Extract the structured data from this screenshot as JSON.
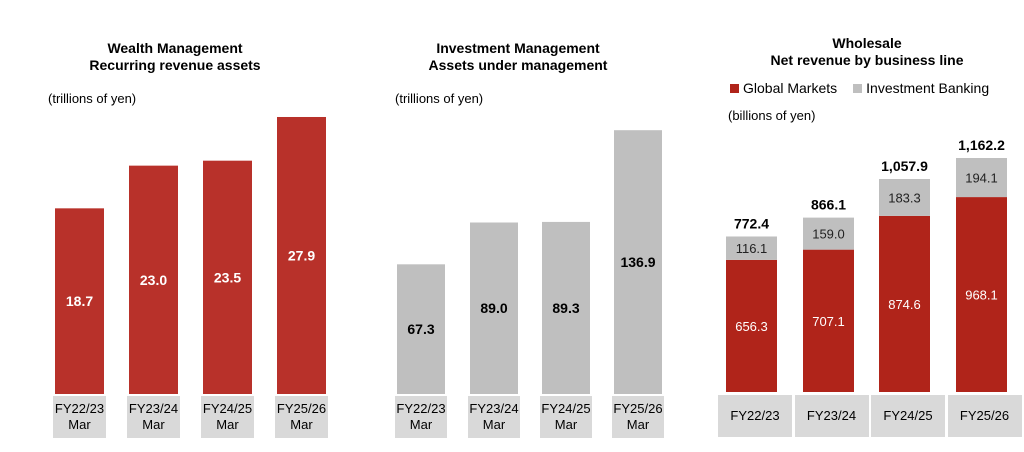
{
  "colors": {
    "red": "#b8312a",
    "red_dark": "#b0241a",
    "gray": "#bfbfbf",
    "cat_bg": "#d9d9d9"
  },
  "chart_data": [
    {
      "type": "bar",
      "title": "Wealth Management",
      "subtitle": "Recurring revenue assets",
      "ylabel": "(trillions of yen)",
      "categories": [
        "FY22/23 Mar",
        "FY23/24 Mar",
        "FY24/25 Mar",
        "FY25/26 Mar"
      ],
      "category_lines": [
        [
          "FY22/23",
          "Mar"
        ],
        [
          "FY23/24",
          "Mar"
        ],
        [
          "FY24/25",
          "Mar"
        ],
        [
          "FY25/26",
          "Mar"
        ]
      ],
      "values": [
        18.7,
        23.0,
        23.5,
        27.9
      ],
      "labels": [
        "18.7",
        "23.0",
        "23.5",
        "27.9"
      ],
      "ylim": [
        0,
        28
      ],
      "color": "#b8312a",
      "grid": false
    },
    {
      "type": "bar",
      "title": "Investment Management",
      "subtitle": "Assets under management",
      "ylabel": "(trillions of yen)",
      "categories": [
        "FY22/23 Mar",
        "FY23/24 Mar",
        "FY24/25 Mar",
        "FY25/26 Mar"
      ],
      "category_lines": [
        [
          "FY22/23",
          "Mar"
        ],
        [
          "FY23/24",
          "Mar"
        ],
        [
          "FY24/25",
          "Mar"
        ],
        [
          "FY25/26",
          "Mar"
        ]
      ],
      "values": [
        67.3,
        89.0,
        89.3,
        136.9
      ],
      "labels": [
        "67.3",
        "89.0",
        "89.3",
        "136.9"
      ],
      "ylim": [
        0,
        137
      ],
      "color": "#bfbfbf",
      "grid": false
    },
    {
      "type": "bar",
      "stacked": true,
      "title": "Wholesale",
      "subtitle": "Net revenue by business line",
      "ylabel": "(billions of yen)",
      "legend_position": "top",
      "categories": [
        "FY22/23",
        "FY23/24",
        "FY24/25",
        "FY25/26"
      ],
      "series": [
        {
          "name": "Global Markets",
          "values": [
            656.3,
            707.1,
            874.6,
            968.1
          ],
          "labels": [
            "656.3",
            "707.1",
            "874.6",
            "968.1"
          ],
          "color": "#b0241a"
        },
        {
          "name": "Investment Banking",
          "values": [
            116.1,
            159.0,
            183.3,
            194.1
          ],
          "labels": [
            "116.1",
            "159.0",
            "183.3",
            "194.1"
          ],
          "color": "#bfbfbf"
        }
      ],
      "totals": [
        "772.4",
        "866.1",
        "1,057.9",
        "1,162.2"
      ],
      "total_values": [
        772.4,
        866.1,
        1057.9,
        1162.2
      ],
      "ylim": [
        0,
        1162.2
      ],
      "grid": false
    }
  ]
}
